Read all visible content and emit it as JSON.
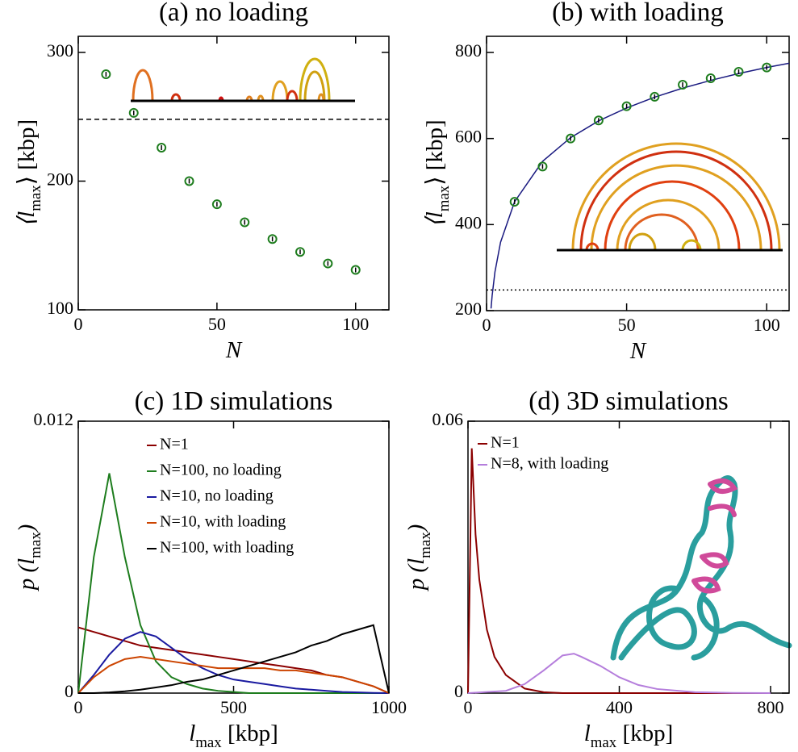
{
  "chart_data": [
    {
      "type": "scatter",
      "title": "(a) no loading",
      "x_label": [
        "N"
      ],
      "y_label": [
        "⟨",
        "l",
        {
          "text": "max",
          "sub": true
        },
        "⟩ [kbp]"
      ],
      "x": [
        10,
        20,
        30,
        40,
        50,
        60,
        70,
        80,
        90,
        100
      ],
      "values": [
        283,
        253,
        226,
        200,
        182,
        168,
        155,
        145,
        136,
        131
      ],
      "color": "#1e7d1e",
      "hline": {
        "value": 248,
        "dash": "6,4"
      },
      "xlim": [
        0,
        112
      ],
      "ylim": [
        100,
        312.5
      ],
      "xticks": [
        0,
        50,
        100
      ],
      "yticks": [
        100,
        200,
        300
      ]
    },
    {
      "type": "scatter",
      "title": "(b) with loading",
      "x_label": [
        "N"
      ],
      "y_label": [
        "⟨",
        "l",
        {
          "text": "max",
          "sub": true
        },
        "⟩ [kbp]"
      ],
      "x": [
        10,
        20,
        30,
        40,
        50,
        60,
        70,
        80,
        90,
        100
      ],
      "values": [
        453,
        535,
        600,
        642,
        675,
        697,
        725,
        740,
        755,
        765
      ],
      "color": "#1e7d1e",
      "curve": {
        "x": [
          1.6,
          2,
          3,
          5,
          10,
          20,
          30,
          40,
          50,
          60,
          70,
          80,
          90,
          100,
          108
        ],
        "values": [
          205,
          235,
          290,
          359,
          453,
          547,
          602,
          641,
          671,
          696,
          717,
          735,
          751,
          765,
          775
        ],
        "color": "#1a1a80"
      },
      "hline": {
        "value": 248,
        "dash": "2,3"
      },
      "xlim": [
        0,
        108
      ],
      "ylim": [
        200,
        837.5
      ],
      "xticks": [
        0,
        50,
        100
      ],
      "yticks": [
        200,
        400,
        600,
        800
      ]
    },
    {
      "type": "line",
      "title": "(c) 1D simulations",
      "x_label": [
        "l",
        {
          "text": "max",
          "sub": true
        },
        " [kbp]"
      ],
      "y_label": [
        "p (",
        "l",
        {
          "text": "max",
          "sub": true
        },
        ")"
      ],
      "legend": "upper right",
      "series": [
        {
          "name": "N=1",
          "color": "#8b0000",
          "x": [
            0,
            50,
            100,
            150,
            200,
            250,
            300,
            350,
            400,
            450,
            500,
            550,
            600,
            650,
            700,
            750,
            800,
            850,
            900,
            950,
            1000
          ],
          "values": [
            0.0029,
            0.0027,
            0.0025,
            0.0023,
            0.0021,
            0.002,
            0.0019,
            0.0018,
            0.0017,
            0.0016,
            0.0015,
            0.0014,
            0.0013,
            0.0012,
            0.0011,
            0.001,
            0.0008,
            0.0007,
            0.0005,
            0.0003,
            0
          ]
        },
        {
          "name": "N=100, no loading",
          "color": "#1e7d1e",
          "x": [
            0,
            50,
            100,
            150,
            200,
            250,
            300,
            350,
            400,
            450,
            500,
            550,
            600,
            650,
            700,
            750,
            800,
            850,
            900,
            950,
            1000
          ],
          "values": [
            0,
            0.006,
            0.0097,
            0.006,
            0.003,
            0.0014,
            0.0007,
            0.0004,
            0.0002,
            0.0001,
            5e-05,
            0,
            0,
            0,
            0,
            0,
            0,
            0,
            0,
            0,
            0
          ]
        },
        {
          "name": "N=10, no loading",
          "color": "#1a1aa0",
          "x": [
            0,
            50,
            100,
            150,
            200,
            250,
            300,
            350,
            400,
            450,
            500,
            550,
            600,
            650,
            700,
            750,
            800,
            850,
            900,
            950,
            1000
          ],
          "values": [
            0,
            0.0008,
            0.0017,
            0.0024,
            0.0027,
            0.0025,
            0.002,
            0.0015,
            0.0011,
            0.0008,
            0.0006,
            0.0005,
            0.0004,
            0.0003,
            0.0002,
            0.00015,
            0.0001,
            5e-05,
            3e-05,
            1e-05,
            0
          ]
        },
        {
          "name": "N=10, with loading",
          "color": "#cc4400",
          "x": [
            0,
            50,
            100,
            150,
            200,
            250,
            300,
            350,
            400,
            450,
            500,
            550,
            600,
            650,
            700,
            750,
            800,
            850,
            900,
            950,
            1000
          ],
          "values": [
            0,
            0.0007,
            0.0012,
            0.0015,
            0.0016,
            0.0015,
            0.0014,
            0.0013,
            0.0012,
            0.0011,
            0.0011,
            0.0011,
            0.0011,
            0.001,
            0.001,
            0.0009,
            0.0008,
            0.0007,
            0.0005,
            0.0003,
            0
          ]
        },
        {
          "name": "N=100, with loading",
          "color": "#000000",
          "x": [
            0,
            50,
            100,
            150,
            200,
            250,
            300,
            350,
            400,
            450,
            500,
            550,
            600,
            650,
            700,
            750,
            800,
            850,
            900,
            950,
            1000
          ],
          "values": [
            0,
            0,
            3e-05,
            8e-05,
            0.00015,
            0.00025,
            0.00035,
            0.0005,
            0.0006,
            0.0008,
            0.001,
            0.0012,
            0.0014,
            0.0016,
            0.0018,
            0.0021,
            0.0023,
            0.0026,
            0.0028,
            0.003,
            0
          ]
        }
      ],
      "xlim": [
        0,
        1000
      ],
      "ylim": [
        0,
        0.012
      ],
      "xticks": [
        0,
        500,
        1000
      ],
      "yticks": [
        0,
        0.012
      ]
    },
    {
      "type": "line",
      "title": "(d) 3D simulations",
      "x_label": [
        "l",
        {
          "text": "max",
          "sub": true
        },
        " [kbp]"
      ],
      "y_label": [
        "p (",
        "l",
        {
          "text": "max",
          "sub": true
        },
        ")"
      ],
      "legend": "upper left",
      "series": [
        {
          "name": "N=1",
          "color": "#8b0000",
          "x": [
            0,
            10,
            20,
            30,
            50,
            70,
            100,
            150,
            200,
            250,
            400,
            600,
            800
          ],
          "values": [
            0,
            0.054,
            0.035,
            0.025,
            0.014,
            0.008,
            0.004,
            0.001,
            0.0002,
            0,
            0,
            0,
            0
          ]
        },
        {
          "name": "N=8, with loading",
          "color": "#b57edc",
          "x": [
            0,
            100,
            150,
            200,
            250,
            280,
            300,
            350,
            400,
            450,
            500,
            600,
            700,
            800
          ],
          "values": [
            0,
            0.0005,
            0.002,
            0.005,
            0.0083,
            0.0087,
            0.008,
            0.006,
            0.0035,
            0.0018,
            0.0009,
            0.0002,
            5e-05,
            0
          ]
        }
      ],
      "xlim": [
        0,
        849
      ],
      "ylim": [
        0,
        0.06
      ],
      "xticks": [
        0,
        400,
        800
      ],
      "yticks": [
        0,
        0.06
      ]
    }
  ]
}
